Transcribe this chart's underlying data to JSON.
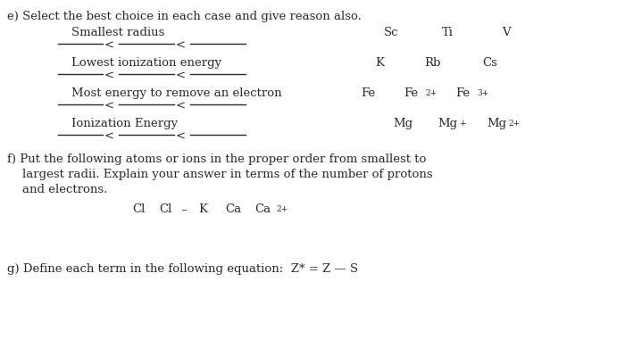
{
  "bg_color": "#ffffff",
  "text_color": "#2a2a2a",
  "fs": 9.5,
  "fs_super": 6.5,
  "ff": "DejaVu Serif",
  "line_color": "#2a2a2a",
  "e_header": "e) Select the best choice in each case and give reason also.",
  "smallest_radius": "Smallest radius",
  "sc": "Sc",
  "ti": "Ti",
  "v": "V",
  "lowest_ie": "Lowest ionization energy",
  "k": "K",
  "rb": "Rb",
  "cs": "Cs",
  "most_energy": "Most energy to remove an electron",
  "fe": "Fe",
  "fe2p": "Fe",
  "fe2p_sup": "2+",
  "fe3p": "Fe",
  "fe3p_sup": "3+",
  "ion_energy": "Ionization Energy",
  "mg": "Mg",
  "mgp": "Mg",
  "mgp_sup": "+",
  "mg2p": "Mg",
  "mg2p_sup": "2+",
  "f_line1": "f) Put the following atoms or ions in the proper order from smallest to",
  "f_line2": "largest radii. Explain your answer in terms of the number of protons",
  "f_line3": "and electrons.",
  "cl": "Cl",
  "clm": "Cl",
  "clm_sup": "−",
  "kk": "K",
  "ca": "Ca",
  "ca2p": "Ca",
  "ca2p_sup": "2+",
  "g_line": "g) Define each term in the following equation:  Z* = Z — S"
}
